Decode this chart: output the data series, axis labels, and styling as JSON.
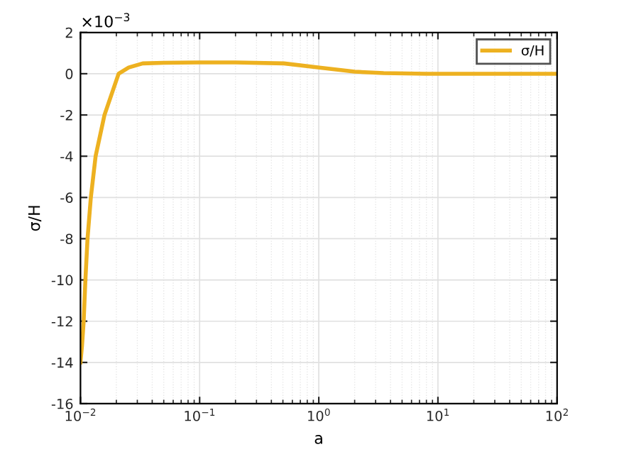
{
  "chart_data": {
    "type": "line",
    "xlabel": "a",
    "ylabel": "σ/H",
    "log": "x",
    "xlim": [
      0.01,
      100
    ],
    "xticks": [
      {
        "value": 0.01,
        "label": "10$^{−2}$"
      },
      {
        "value": 0.1,
        "label": "10$^{−1}$"
      },
      {
        "value": 1,
        "label": "10$^{0}$"
      },
      {
        "value": 10,
        "label": "10$^{1}$"
      },
      {
        "value": 100,
        "label": "10$^{2}$"
      }
    ],
    "ylim": [
      -16,
      2
    ],
    "yticks": [
      -16,
      -14,
      -12,
      -10,
      -8,
      -6,
      -4,
      -2,
      0,
      2
    ],
    "annotations": [
      "×10$^{−3}$"
    ],
    "grid": true,
    "legend": "top right",
    "marker": "none",
    "line_style": "solid",
    "series": [
      {
        "name": "σ/H",
        "color": "#edb120",
        "x": [
          0.01,
          0.0103,
          0.01064,
          0.011,
          0.01146,
          0.01222,
          0.0134,
          0.0159,
          0.0209,
          0.0254,
          0.0333,
          0.05,
          0.1,
          0.2,
          0.51,
          1.01,
          2.0,
          3.5,
          8,
          20,
          100
        ],
        "values": [
          -14,
          -13.2,
          -12,
          -10,
          -8,
          -6,
          -4,
          -2,
          0,
          0.3,
          0.5,
          0.53,
          0.55,
          0.55,
          0.5,
          0.3,
          0.1,
          0.03,
          0,
          0,
          0
        ]
      }
    ]
  }
}
